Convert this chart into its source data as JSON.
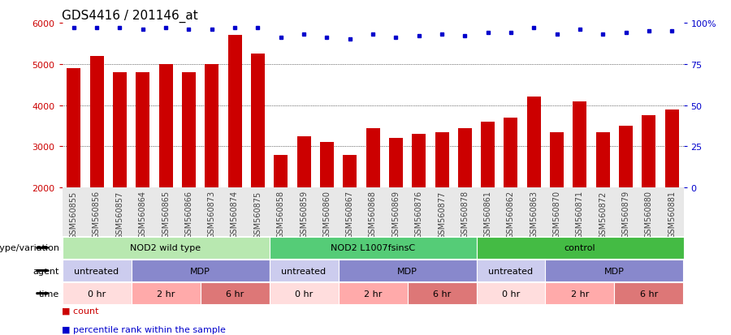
{
  "title": "GDS4416 / 201146_at",
  "samples": [
    "GSM560855",
    "GSM560856",
    "GSM560857",
    "GSM560864",
    "GSM560865",
    "GSM560866",
    "GSM560873",
    "GSM560874",
    "GSM560875",
    "GSM560858",
    "GSM560859",
    "GSM560860",
    "GSM560867",
    "GSM560868",
    "GSM560869",
    "GSM560876",
    "GSM560877",
    "GSM560878",
    "GSM560861",
    "GSM560862",
    "GSM560863",
    "GSM560870",
    "GSM560871",
    "GSM560872",
    "GSM560879",
    "GSM560880",
    "GSM560881"
  ],
  "counts": [
    4900,
    5200,
    4800,
    4800,
    5000,
    4800,
    5000,
    5700,
    5250,
    2800,
    3250,
    3100,
    2800,
    3450,
    3200,
    3300,
    3350,
    3450,
    3600,
    3700,
    4200,
    3350,
    4100,
    3350,
    3500,
    3750,
    3900
  ],
  "percentile_ranks": [
    97,
    97,
    97,
    96,
    97,
    96,
    96,
    97,
    97,
    91,
    93,
    91,
    90,
    93,
    91,
    92,
    93,
    92,
    94,
    94,
    97,
    93,
    96,
    93,
    94,
    95,
    95
  ],
  "bar_color": "#cc0000",
  "dot_color": "#0000cc",
  "ylim_left": [
    2000,
    6000
  ],
  "ylim_right": [
    0,
    100
  ],
  "yticks_left": [
    2000,
    3000,
    4000,
    5000,
    6000
  ],
  "yticks_right": [
    0,
    25,
    50,
    75,
    100
  ],
  "grid_values": [
    3000,
    4000,
    5000
  ],
  "genotype_groups": [
    {
      "label": "NOD2 wild type",
      "start": 0,
      "end": 9,
      "color": "#b8e8b0"
    },
    {
      "label": "NOD2 L1007fsinsC",
      "start": 9,
      "end": 18,
      "color": "#55cc77"
    },
    {
      "label": "control",
      "start": 18,
      "end": 27,
      "color": "#44bb44"
    }
  ],
  "agent_groups": [
    {
      "label": "untreated",
      "start": 0,
      "end": 3,
      "color": "#ccccee"
    },
    {
      "label": "MDP",
      "start": 3,
      "end": 9,
      "color": "#8888cc"
    },
    {
      "label": "untreated",
      "start": 9,
      "end": 12,
      "color": "#ccccee"
    },
    {
      "label": "MDP",
      "start": 12,
      "end": 18,
      "color": "#8888cc"
    },
    {
      "label": "untreated",
      "start": 18,
      "end": 21,
      "color": "#ccccee"
    },
    {
      "label": "MDP",
      "start": 21,
      "end": 27,
      "color": "#8888cc"
    }
  ],
  "time_groups": [
    {
      "label": "0 hr",
      "start": 0,
      "end": 3,
      "color": "#ffdddd"
    },
    {
      "label": "2 hr",
      "start": 3,
      "end": 6,
      "color": "#ffaaaa"
    },
    {
      "label": "6 hr",
      "start": 6,
      "end": 9,
      "color": "#dd7777"
    },
    {
      "label": "0 hr",
      "start": 9,
      "end": 12,
      "color": "#ffdddd"
    },
    {
      "label": "2 hr",
      "start": 12,
      "end": 15,
      "color": "#ffaaaa"
    },
    {
      "label": "6 hr",
      "start": 15,
      "end": 18,
      "color": "#dd7777"
    },
    {
      "label": "0 hr",
      "start": 18,
      "end": 21,
      "color": "#ffdddd"
    },
    {
      "label": "2 hr",
      "start": 21,
      "end": 24,
      "color": "#ffaaaa"
    },
    {
      "label": "6 hr",
      "start": 24,
      "end": 27,
      "color": "#dd7777"
    }
  ],
  "row_labels": [
    "genotype/variation",
    "agent",
    "time"
  ],
  "background_color": "#ffffff",
  "title_fontsize": 11,
  "tick_fontsize": 7,
  "label_fontsize": 8,
  "annotation_fontsize": 8,
  "sample_tick_fontsize": 7
}
